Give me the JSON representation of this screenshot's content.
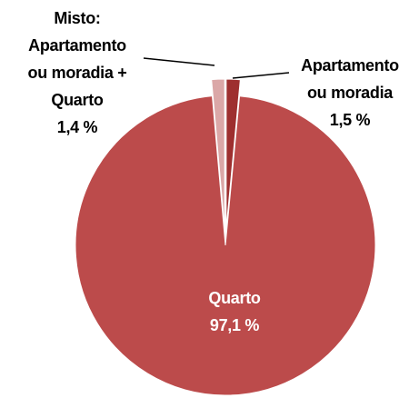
{
  "chart_data": {
    "type": "pie",
    "categories": [
      "Apartamento\nou moradia",
      "Quarto",
      "Misto:\nApartamento\nou moradia +\nQuarto"
    ],
    "values": [
      1.5,
      97.1,
      1.4
    ],
    "value_labels": [
      "1,5 %",
      "97,1 %",
      "1,4 %"
    ],
    "colors": [
      "#9e2f2f",
      "#bc4b4b",
      "#dba7a7"
    ]
  }
}
